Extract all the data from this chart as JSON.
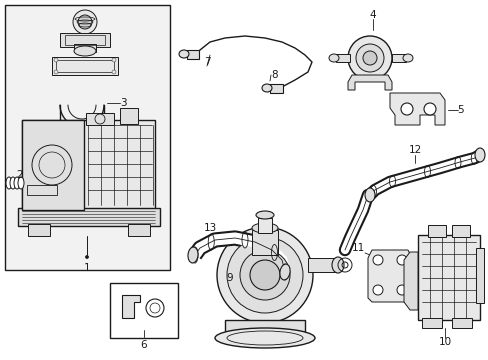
{
  "bg_color": "#ffffff",
  "line_color": "#1a1a1a",
  "box_fill": "#f0f0f0",
  "fig_width": 4.89,
  "fig_height": 3.6,
  "dpi": 100
}
